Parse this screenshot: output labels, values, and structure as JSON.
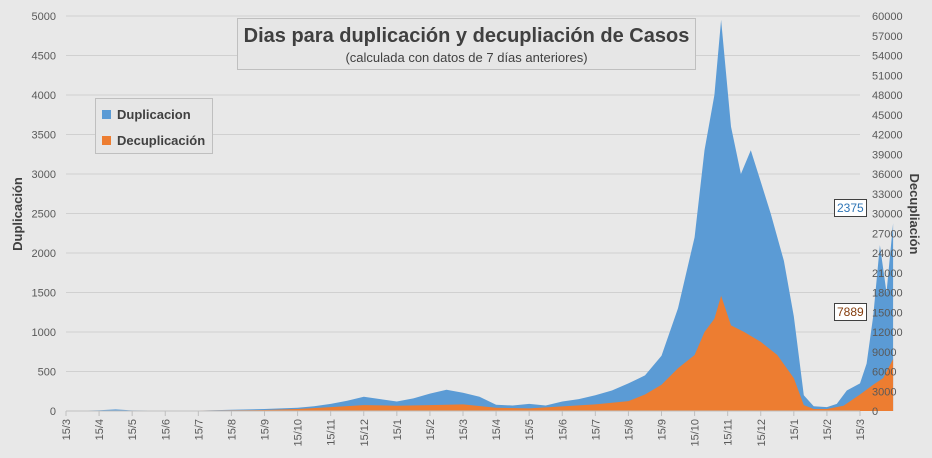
{
  "chart_data": {
    "type": "area",
    "title": "Dias para duplicación y decupliación de Casos",
    "subtitle": "(calculada con datos de 7 días anteriores)",
    "ylabel_left": "Duplicación",
    "ylabel_right": "Decupliación",
    "ylim_left": [
      0,
      5000
    ],
    "ylim_right": [
      0,
      60000
    ],
    "yticks_left": [
      "0",
      "500",
      "1000",
      "1500",
      "2000",
      "2500",
      "3000",
      "3500",
      "4000",
      "4500",
      "5000"
    ],
    "yticks_right": [
      "0",
      "3000",
      "6000",
      "9000",
      "12000",
      "15000",
      "18000",
      "21000",
      "24000",
      "27000",
      "30000",
      "33000",
      "36000",
      "39000",
      "42000",
      "45000",
      "48000",
      "51000",
      "54000",
      "57000",
      "60000"
    ],
    "x_tick_labels": [
      "15/3",
      "15/4",
      "15/5",
      "15/6",
      "15/7",
      "15/8",
      "15/9",
      "15/10",
      "15/11",
      "15/12",
      "15/1",
      "15/2",
      "15/3",
      "15/4",
      "15/5",
      "15/6",
      "15/7",
      "15/8",
      "15/9",
      "15/10",
      "15/11",
      "15/12",
      "15/1",
      "15/2",
      "15/3"
    ],
    "grid": true,
    "legend_position": "upper-left",
    "series": [
      {
        "name": "Duplicacion",
        "axis": "left",
        "color": "#5b9bd5",
        "points": [
          [
            0,
            0
          ],
          [
            1,
            10
          ],
          [
            1.5,
            20
          ],
          [
            2,
            8
          ],
          [
            3,
            5
          ],
          [
            4,
            5
          ],
          [
            5,
            15
          ],
          [
            6,
            25
          ],
          [
            7,
            40
          ],
          [
            7.5,
            60
          ],
          [
            8,
            90
          ],
          [
            8.5,
            130
          ],
          [
            9,
            180
          ],
          [
            9.5,
            150
          ],
          [
            10,
            120
          ],
          [
            10.5,
            160
          ],
          [
            11,
            220
          ],
          [
            11.5,
            270
          ],
          [
            12,
            230
          ],
          [
            12.5,
            180
          ],
          [
            13,
            80
          ],
          [
            13.5,
            70
          ],
          [
            14,
            90
          ],
          [
            14.5,
            70
          ],
          [
            15,
            120
          ],
          [
            15.5,
            150
          ],
          [
            16,
            200
          ],
          [
            16.5,
            260
          ],
          [
            17,
            350
          ],
          [
            17.5,
            450
          ],
          [
            18,
            700
          ],
          [
            18.5,
            1300
          ],
          [
            19,
            2200
          ],
          [
            19.3,
            3300
          ],
          [
            19.6,
            4000
          ],
          [
            19.8,
            4950
          ],
          [
            20.1,
            3600
          ],
          [
            20.4,
            3000
          ],
          [
            20.7,
            3300
          ],
          [
            21,
            2900
          ],
          [
            21.3,
            2500
          ],
          [
            21.7,
            1900
          ],
          [
            22,
            1200
          ],
          [
            22.3,
            200
          ],
          [
            22.6,
            60
          ],
          [
            23,
            50
          ],
          [
            23.3,
            90
          ],
          [
            23.6,
            260
          ],
          [
            24,
            350
          ],
          [
            24.2,
            600
          ],
          [
            24.4,
            1200
          ],
          [
            24.6,
            2100
          ],
          [
            24.8,
            1500
          ],
          [
            25,
            2375
          ]
        ]
      },
      {
        "name": "Decuplicación",
        "axis": "right",
        "color": "#ed7d31",
        "points": [
          [
            0,
            0
          ],
          [
            2,
            50
          ],
          [
            4,
            80
          ],
          [
            6,
            150
          ],
          [
            7,
            300
          ],
          [
            8,
            600
          ],
          [
            9,
            900
          ],
          [
            10,
            800
          ],
          [
            11,
            900
          ],
          [
            12,
            1000
          ],
          [
            13,
            500
          ],
          [
            14,
            400
          ],
          [
            15,
            700
          ],
          [
            16,
            1000
          ],
          [
            17,
            1500
          ],
          [
            17.5,
            2500
          ],
          [
            18,
            4000
          ],
          [
            18.5,
            6500
          ],
          [
            19,
            8500
          ],
          [
            19.3,
            12000
          ],
          [
            19.6,
            14000
          ],
          [
            19.8,
            17500
          ],
          [
            20.1,
            13000
          ],
          [
            20.5,
            12000
          ],
          [
            21,
            10500
          ],
          [
            21.5,
            8500
          ],
          [
            22,
            5000
          ],
          [
            22.3,
            900
          ],
          [
            22.6,
            300
          ],
          [
            23,
            300
          ],
          [
            23.5,
            800
          ],
          [
            24,
            2500
          ],
          [
            24.4,
            4000
          ],
          [
            24.7,
            5000
          ],
          [
            25,
            7889
          ]
        ]
      }
    ],
    "annotations": [
      {
        "series": "Duplicacion",
        "value": "2375",
        "color": "#2e75b6"
      },
      {
        "series": "Decuplicación",
        "value": "7889",
        "color": "#843c0c"
      }
    ]
  }
}
